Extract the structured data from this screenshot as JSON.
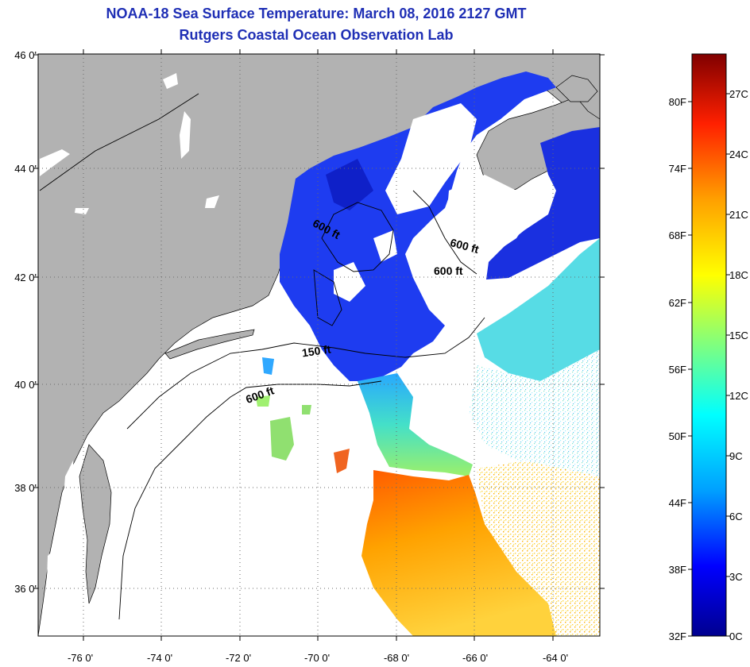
{
  "title": "NOAA-18 Sea Surface Temperature:  March 08, 2016 2127 GMT",
  "subtitle": "Rutgers Coastal Ocean Observation Lab",
  "map": {
    "lat_labels": [
      "46 0'",
      "44 0'",
      "42 0'",
      "40 0'",
      "38 0'",
      "36 0'"
    ],
    "lon_labels": [
      "-76 0'",
      "-74 0'",
      "-72 0'",
      "-70 0'",
      "-68 0'",
      "-66 0'",
      "-64 0'"
    ],
    "contour_labels": [
      "600 ft",
      "600 ft",
      "600 ft",
      "150 ft",
      "600 ft"
    ],
    "land_color": "#b2b2b2",
    "no_data_color": "#ffffff"
  },
  "colorbar": {
    "fahrenheit_labels": [
      "80F",
      "74F",
      "68F",
      "62F",
      "56F",
      "50F",
      "44F",
      "38F",
      "32F"
    ],
    "celsius_labels": [
      "27C",
      "24C",
      "21C",
      "18C",
      "15C",
      "12C",
      "9C",
      "6C",
      "3C",
      "0C"
    ],
    "colors": [
      "#00008f",
      "#0000ff",
      "#00a0ff",
      "#00ffff",
      "#7fff7f",
      "#ffff00",
      "#ffa000",
      "#ff2000",
      "#800000"
    ]
  }
}
